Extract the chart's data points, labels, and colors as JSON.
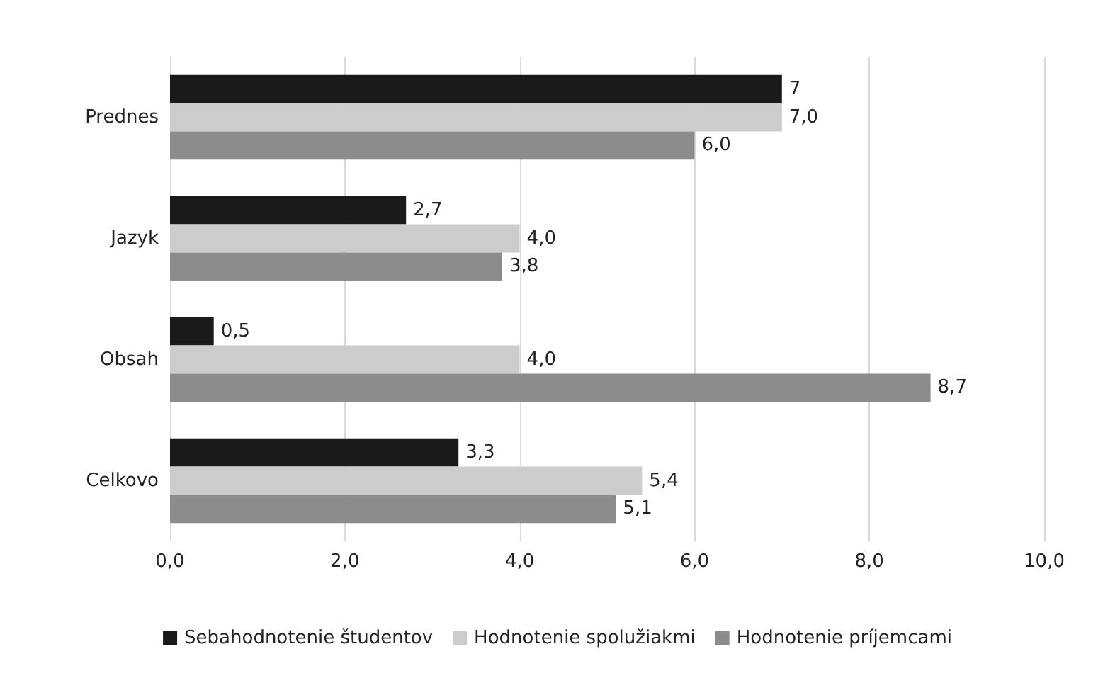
{
  "chart_data": {
    "type": "bar",
    "orientation": "horizontal",
    "categories": [
      "Prednes",
      "Jazyk",
      "Obsah",
      "Celkovo"
    ],
    "series": [
      {
        "name": "Sebahodnotenie študentov",
        "color": "#1a1a1a",
        "values": [
          7,
          2.7,
          0.5,
          3.3
        ],
        "value_labels": [
          "7",
          "2,7",
          "0,5",
          "3,3"
        ]
      },
      {
        "name": "Hodnotenie spolužiakmi",
        "color": "#cccccc",
        "values": [
          7.0,
          4.0,
          4.0,
          5.4
        ],
        "value_labels": [
          "7,0",
          "4,0",
          "4,0",
          "5,4"
        ]
      },
      {
        "name": "Hodnotenie príjemcami",
        "color": "#8c8c8c",
        "values": [
          6.0,
          3.8,
          8.7,
          5.1
        ],
        "value_labels": [
          "6,0",
          "3,8",
          "8,7",
          "5,1"
        ]
      }
    ],
    "xlim": [
      0,
      10
    ],
    "xticks": [
      {
        "value": 0,
        "label": "0,0"
      },
      {
        "value": 2,
        "label": "2,0"
      },
      {
        "value": 4,
        "label": "4,0"
      },
      {
        "value": 6,
        "label": "6,0"
      },
      {
        "value": 8,
        "label": "8,0"
      },
      {
        "value": 10,
        "label": "10,0"
      }
    ],
    "grid": "x",
    "legend": "bottom"
  }
}
